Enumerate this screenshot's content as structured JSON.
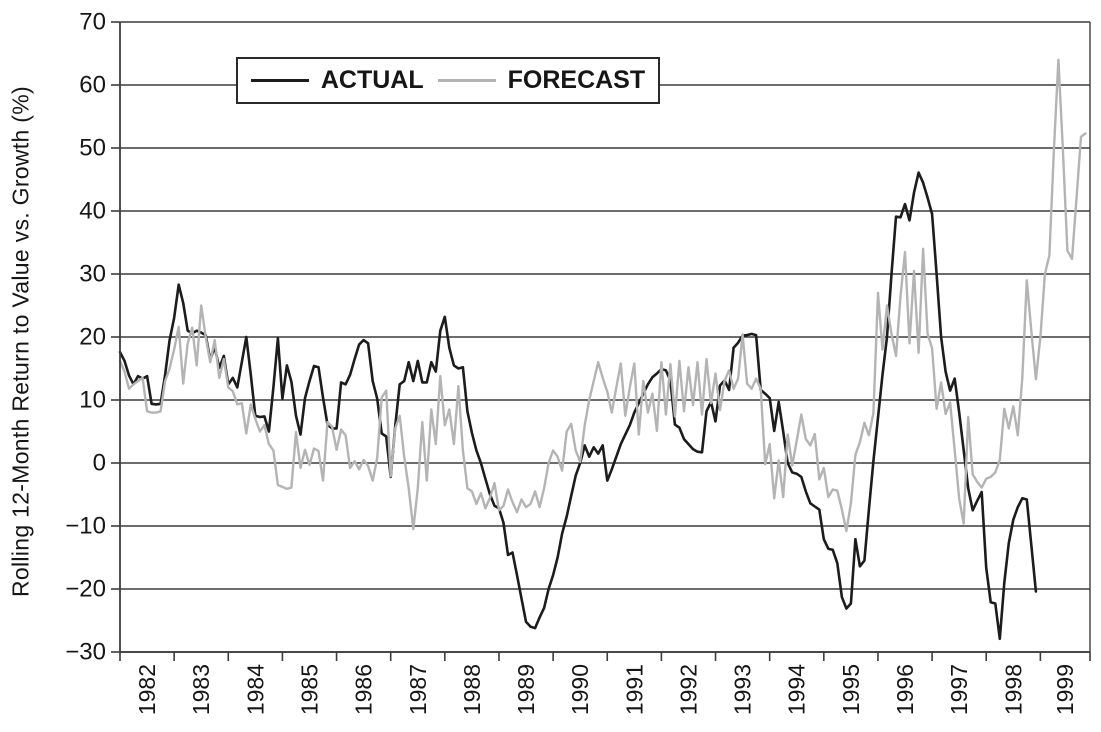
{
  "chart_data": {
    "type": "line",
    "title": "",
    "xlabel": "",
    "ylabel": "Rolling 12-Month Return to Value vs.  Growth (%)",
    "ylim": [
      -30,
      70
    ],
    "grid": true,
    "legend_position": "top-inside-box",
    "y_ticks": [
      70,
      60,
      50,
      40,
      30,
      20,
      10,
      0,
      -10,
      -20,
      -30
    ],
    "y_tick_labels": [
      "70",
      "60",
      "50",
      "40",
      "30",
      "20",
      "10",
      "0",
      "−10",
      "−20",
      "−30"
    ],
    "x_tick_labels": [
      "1982",
      "1983",
      "1984",
      "1985",
      "1986",
      "1987",
      "1988",
      "1989",
      "1990",
      "1991",
      "1992",
      "1993",
      "1994",
      "1995",
      "1996",
      "1997",
      "1998",
      "1999"
    ],
    "x_start": "1982-01",
    "x_frequency": "monthly",
    "x_total_months": 215,
    "legend": [
      {
        "label": "ACTUAL",
        "color": "#1c1c1c"
      },
      {
        "label": "FORECAST",
        "color": "#b4b4b4"
      }
    ],
    "series": [
      {
        "name": "ACTUAL",
        "color": "#1c1c1c",
        "values": [
          17.6,
          16.2,
          13.9,
          12.5,
          13.8,
          13.4,
          13.8,
          9.4,
          9.3,
          9.4,
          14.0,
          19.5,
          23.0,
          28.3,
          25.4,
          21.0,
          20.6,
          21.0,
          20.7,
          20.3,
          16.4,
          18.4,
          15.1,
          17.0,
          12.5,
          13.5,
          12.0,
          16.0,
          20.0,
          14.0,
          7.5,
          7.3,
          7.4,
          5.0,
          12.0,
          19.8,
          10.2,
          15.5,
          12.9,
          7.5,
          4.5,
          10.3,
          13.0,
          15.4,
          15.2,
          10.4,
          6.1,
          5.5,
          5.5,
          12.8,
          12.5,
          14.0,
          16.5,
          18.8,
          19.5,
          19.0,
          13.0,
          10.2,
          4.7,
          4.2,
          -2.2,
          5.8,
          12.5,
          13.0,
          16.0,
          13.0,
          16.2,
          12.8,
          12.8,
          16.0,
          14.5,
          21.0,
          23.2,
          18.3,
          15.5,
          15.0,
          15.2,
          8.2,
          4.8,
          2.0,
          0.0,
          -2.5,
          -5.0,
          -6.8,
          -7.2,
          -9.5,
          -14.6,
          -14.2,
          -17.8,
          -21.5,
          -25.2,
          -26.0,
          -26.2,
          -24.5,
          -23.0,
          -20.0,
          -17.8,
          -15.0,
          -11.2,
          -8.5,
          -5.2,
          -2.0,
          0.0,
          2.8,
          1.0,
          2.5,
          1.5,
          2.8,
          -2.8,
          -1.0,
          1.0,
          3.0,
          4.5,
          6.0,
          8.0,
          9.5,
          11.0,
          12.5,
          13.6,
          14.2,
          14.9,
          14.7,
          13.1,
          6.1,
          5.6,
          3.8,
          3.0,
          2.2,
          1.8,
          1.7,
          8.2,
          9.7,
          6.6,
          12.3,
          13.1,
          11.6,
          18.3,
          19.1,
          20.2,
          20.3,
          20.5,
          20.3,
          11.6,
          11.0,
          10.3,
          5.1,
          9.7,
          5.0,
          0.0,
          -1.5,
          -1.7,
          -2.2,
          -4.5,
          -6.4,
          -6.9,
          -7.4,
          -12.1,
          -13.6,
          -13.8,
          -15.9,
          -21.3,
          -23.1,
          -22.3,
          -12.1,
          -16.4,
          -15.5,
          -7.4,
          0.3,
          7.2,
          14.0,
          20.0,
          30.0,
          39.1,
          39.0,
          41.1,
          38.5,
          42.9,
          46.1,
          44.5,
          42.1,
          39.5,
          30.0,
          20.0,
          14.5,
          11.5,
          13.4,
          8.0,
          2.0,
          -4.0,
          -7.5,
          -6.0,
          -4.6,
          -16.6,
          -22.1,
          -22.3,
          -27.9,
          -19.0,
          -12.7,
          -9.0,
          -7.0,
          -5.6,
          -5.8,
          -13.0,
          -20.4
        ]
      },
      {
        "name": "FORECAST",
        "color": "#b4b4b4",
        "values": [
          16.2,
          14.5,
          11.8,
          12.5,
          13.0,
          13.5,
          8.2,
          8.0,
          8.0,
          8.2,
          13.0,
          15.0,
          18.0,
          21.6,
          12.6,
          19.0,
          21.5,
          15.5,
          25.0,
          20.0,
          16.0,
          19.5,
          13.5,
          16.5,
          12.0,
          11.4,
          9.3,
          9.5,
          4.7,
          9.3,
          7.0,
          5.0,
          6.0,
          3.0,
          2.0,
          -3.5,
          -3.8,
          -4.1,
          -3.9,
          4.9,
          -0.8,
          2.1,
          -0.3,
          2.3,
          1.9,
          -2.8,
          6.5,
          5.8,
          2.1,
          5.3,
          4.4,
          -0.8,
          0.3,
          -1.0,
          0.5,
          -0.5,
          -2.8,
          0.8,
          10.4,
          11.5,
          -2.1,
          5.5,
          7.5,
          1.0,
          -4.0,
          -10.5,
          -4.0,
          6.5,
          -2.8,
          8.5,
          3.0,
          13.8,
          6.0,
          8.5,
          3.0,
          12.2,
          2.0,
          -4.0,
          -4.5,
          -6.5,
          -4.8,
          -7.2,
          -5.5,
          -3.2,
          -7.5,
          -6.8,
          -4.2,
          -6.2,
          -7.8,
          -5.8,
          -7.0,
          -6.5,
          -4.5,
          -7.0,
          -4.0,
          0.0,
          2.0,
          1.0,
          -1.2,
          5.0,
          6.2,
          2.0,
          0.2,
          6.0,
          10.0,
          13.0,
          16.0,
          13.5,
          11.3,
          8.0,
          12.0,
          15.8,
          7.5,
          12.0,
          15.8,
          4.5,
          13.0,
          8.0,
          11.0,
          5.1,
          16.0,
          7.7,
          15.7,
          7.4,
          16.2,
          8.2,
          15.2,
          9.2,
          16.0,
          7.7,
          16.5,
          9.5,
          14.2,
          8.4,
          13.1,
          14.7,
          11.8,
          13.4,
          20.4,
          12.6,
          11.8,
          13.4,
          11.8,
          -0.2,
          3.0,
          -5.6,
          0.4,
          -5.4,
          4.5,
          -0.4,
          3.5,
          7.7,
          3.8,
          2.8,
          4.6,
          -2.6,
          -0.8,
          -5.4,
          -4.2,
          -4.4,
          -7.4,
          -10.8,
          -6.4,
          1.3,
          3.3,
          6.4,
          4.4,
          7.9,
          27.0,
          18.0,
          25.0,
          20.5,
          17.0,
          26.5,
          33.5,
          19.0,
          30.5,
          17.5,
          34.0,
          20.5,
          18.2,
          8.6,
          12.8,
          7.8,
          9.6,
          2.0,
          -5.7,
          -9.6,
          7.3,
          -1.8,
          -3.0,
          -3.9,
          -2.5,
          -2.2,
          -1.5,
          0.5,
          8.6,
          5.5,
          9.0,
          4.4,
          13.5,
          29.0,
          21.0,
          13.3,
          20.0,
          30.0,
          33.0,
          49.7,
          64.0,
          49.7,
          33.7,
          32.4,
          42.0,
          51.8,
          52.3
        ]
      }
    ]
  }
}
